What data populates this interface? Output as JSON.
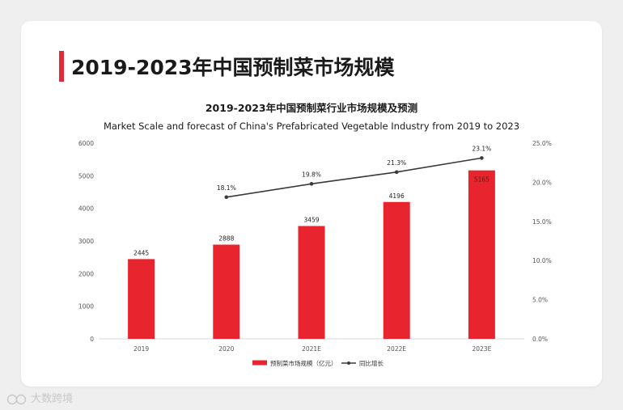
{
  "page": {
    "title": "2019-2023年中国预制菜市场规模",
    "watermark": "大数跨境"
  },
  "chart_data": {
    "type": "bar",
    "title": "2019-2023年中国预制菜行业市场规模及预测",
    "subtitle": "Market Scale and forecast of China's Prefabricated Vegetable Industry from 2019 to 2023",
    "categories": [
      "2019",
      "2020",
      "2021E",
      "2022E",
      "2023E"
    ],
    "series": [
      {
        "name": "预制菜市场规模（亿元）",
        "type": "bar",
        "axis": "left",
        "values": [
          2445,
          2888,
          3459,
          4196,
          5165
        ],
        "labels": [
          "2445",
          "2888",
          "3459",
          "4196",
          "5165"
        ],
        "color": "#e8252f"
      },
      {
        "name": "同比增长",
        "type": "line",
        "axis": "right",
        "values": [
          null,
          18.1,
          19.8,
          21.3,
          23.1
        ],
        "labels": [
          "",
          "18.1%",
          "19.8%",
          "21.3%",
          "23.1%"
        ],
        "color": "#3a3a3a"
      }
    ],
    "left_axis": {
      "ylim": [
        0,
        6000
      ],
      "ticks": [
        "0",
        "1000",
        "2000",
        "3000",
        "4000",
        "5000",
        "6000"
      ]
    },
    "right_axis": {
      "ylim": [
        0,
        25
      ],
      "ticks": [
        "0.0%",
        "5.0%",
        "10.0%",
        "15.0%",
        "20.0%",
        "25.0%"
      ]
    },
    "grid": false,
    "legend_position": "bottom-center"
  }
}
